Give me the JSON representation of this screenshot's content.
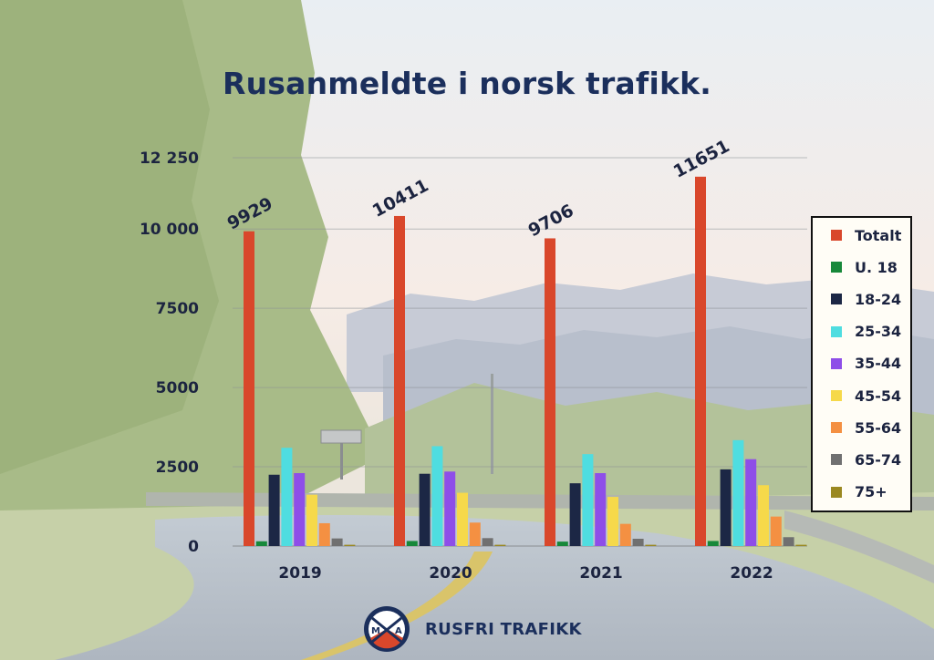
{
  "title": "Rusanmeldte i norsk trafikk.",
  "brand": {
    "name": "RUSFRI TRAFIKK",
    "logo_letters": "MA"
  },
  "colors": {
    "Totalt": "#d9472b",
    "U. 18": "#17883a",
    "18-24": "#1c2745",
    "25-34": "#4fdde0",
    "35-44": "#8e4ee8",
    "45-54": "#f6d94a",
    "55-64": "#f49042",
    "65-74": "#707070",
    "75+": "#9a8820"
  },
  "chart_data": {
    "type": "bar",
    "title": "Rusanmeldte i norsk trafikk.",
    "categories": [
      "2019",
      "2020",
      "2021",
      "2022"
    ],
    "ylim": [
      0,
      12250
    ],
    "yticks": [
      0,
      2500,
      5000,
      7500,
      10000,
      12250
    ],
    "ytick_labels": [
      "0",
      "2500",
      "5000",
      "7500",
      "10 000",
      "12 250"
    ],
    "grid": true,
    "legend_position": "right",
    "series": [
      {
        "name": "Totalt",
        "values": [
          9929,
          10411,
          9706,
          11651
        ],
        "data_labels": [
          "9929",
          "10411",
          "9706",
          "11651"
        ]
      },
      {
        "name": "U. 18",
        "values": [
          150,
          160,
          140,
          160
        ]
      },
      {
        "name": "18-24",
        "values": [
          2250,
          2280,
          1980,
          2420
        ]
      },
      {
        "name": "25-34",
        "values": [
          3100,
          3150,
          2900,
          3340
        ]
      },
      {
        "name": "35-44",
        "values": [
          2300,
          2350,
          2300,
          2740
        ]
      },
      {
        "name": "45-54",
        "values": [
          1620,
          1680,
          1550,
          1920
        ]
      },
      {
        "name": "55-64",
        "values": [
          720,
          740,
          700,
          930
        ]
      },
      {
        "name": "65-74",
        "values": [
          240,
          250,
          230,
          280
        ]
      },
      {
        "name": "75+",
        "values": [
          40,
          40,
          40,
          40
        ]
      }
    ]
  }
}
